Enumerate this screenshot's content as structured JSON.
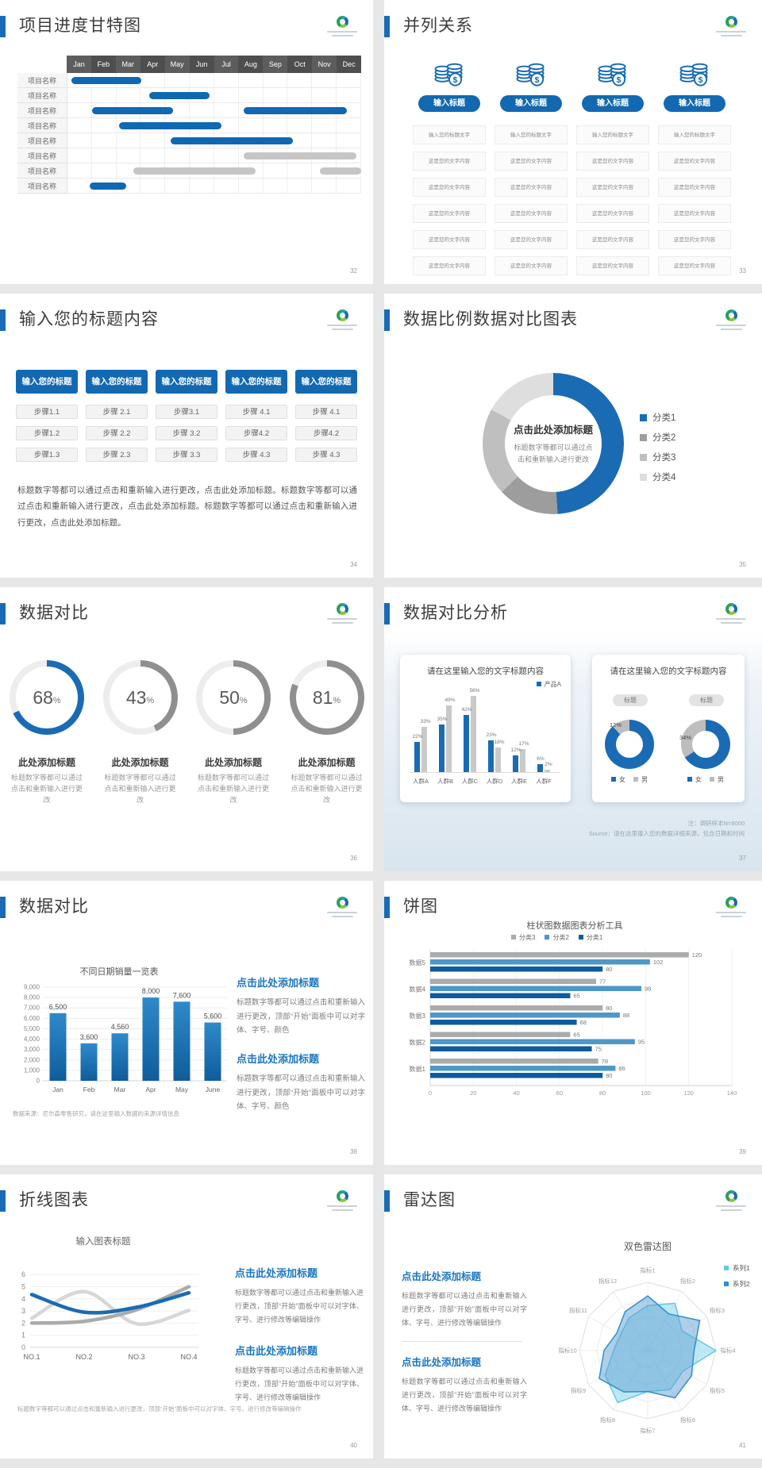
{
  "colors": {
    "accent": "#1a6bb3",
    "blue": "#1269b1",
    "gantt_blue": "#1068b2",
    "gantt_gray": "#c6c6c6"
  },
  "slides": {
    "s32": {
      "page": "32",
      "title": "项目进度甘特图"
    },
    "s33": {
      "page": "33",
      "title": "并列关系",
      "button": "输入标题",
      "row_first": "输入您的标题文字",
      "row_rest": "这是您的文字内容",
      "columns": 4,
      "rows_per_column": 6
    },
    "s34": {
      "page": "34",
      "title": "输入您的标题内容",
      "header": "输入您的标题",
      "steps": [
        [
          "步骤1.1",
          "步骤1.2",
          "步骤1.3"
        ],
        [
          "步骤 2.1",
          "步骤 2.2",
          "步骤 2.3"
        ],
        [
          "步骤3.1",
          "步骤 3.2",
          "步骤 3.3"
        ],
        [
          "步骤 4.1",
          "步骤4.2",
          "步骤 4.3"
        ],
        [
          "步骤 4.1",
          "步骤4.2",
          "步骤 4.3"
        ]
      ],
      "body": "标题数字等都可以通过点击和重新输入进行更改，点击此处添加标题。标题数字等都可以通过点击和重新输入进行更改，点击此处添加标题。标题数字等都可以通过点击和重新输入进行更改，点击此处添加标题。"
    },
    "s35": {
      "page": "35",
      "title": "数据比例数据对比图表"
    },
    "s36": {
      "page": "36",
      "title": "数据对比"
    },
    "s37": {
      "page": "37",
      "title": "数据对比分析",
      "card_title": "请在这里输入您的文字标题内容",
      "pill": "标题",
      "note1": "注：调研样本N=9000",
      "note2": "Source：请在这里输入您的数据详细来源，包含日期和时间"
    },
    "s38": {
      "page": "38",
      "title": "数据对比",
      "block_title": "点击此处添加标题",
      "block_body": "标题数字等都可以通过点击和重新输入进行更改，顶部“开始”面板中可以对字体、字号、颜色",
      "source": "数据来源：尼尔森零售研究，请在这里输入数据的来源详情信息"
    },
    "s39": {
      "page": "39",
      "title": "饼图"
    },
    "s40": {
      "page": "40",
      "title": "折线图表",
      "block_title": "点击此处添加标题",
      "block_body": "标题数字等都可以通过点击和重新输入进行更改，顶部“开始”面板中可以对字体、字号、进行修改等编辑操作",
      "note": "标题数字等都可以通过点击和重新输入进行更改，顶部“开始”面板中可以对字体、字号、进行修改等编辑操作"
    },
    "s41": {
      "page": "41",
      "title": "雷达图",
      "block_title": "点击此处添加标题",
      "block_body": "标题数字等都可以通过点击和重新输入进行更改，顶部“开始”面板中可以对字体、字号、进行修改等编辑操作"
    }
  },
  "chart_data": [
    {
      "id": "gantt32",
      "type": "gantt",
      "title": "项目进度甘特图",
      "months": [
        "Jan",
        "Feb",
        "Mar",
        "Apr",
        "May",
        "Jun",
        "Jul",
        "Aug",
        "Sep",
        "Oct",
        "Nov",
        "Dec"
      ],
      "row_label": "项目名称",
      "rows": 8,
      "bars": [
        {
          "row": 0,
          "start": 0.15,
          "end": 3.0,
          "color": "blue"
        },
        {
          "row": 1,
          "start": 3.35,
          "end": 5.8,
          "color": "blue"
        },
        {
          "row": 2,
          "start": 1.0,
          "end": 4.3,
          "color": "blue"
        },
        {
          "row": 2,
          "start": 7.2,
          "end": 11.4,
          "color": "blue"
        },
        {
          "row": 3,
          "start": 2.1,
          "end": 6.3,
          "color": "blue"
        },
        {
          "row": 4,
          "start": 4.2,
          "end": 9.2,
          "color": "blue"
        },
        {
          "row": 5,
          "start": 7.2,
          "end": 11.8,
          "color": "gray"
        },
        {
          "row": 6,
          "start": 2.7,
          "end": 7.7,
          "color": "gray"
        },
        {
          "row": 6,
          "start": 10.3,
          "end": 12.0,
          "color": "gray"
        },
        {
          "row": 7,
          "start": 0.9,
          "end": 2.4,
          "color": "blue"
        }
      ]
    },
    {
      "id": "donut35",
      "type": "pie",
      "legend": [
        "分类1",
        "分类2",
        "分类3",
        "分类4"
      ],
      "values": [
        49,
        14,
        20,
        17
      ],
      "colors": [
        "#1a6bb3",
        "#9d9d9d",
        "#bfbfbf",
        "#dedede"
      ],
      "center_title": "点击此处添加标题",
      "center_sub": "标题数字等都可以通过点击和重新输入进行更改"
    },
    {
      "id": "gauges36",
      "type": "donut-gauges",
      "track": "#ededed",
      "caption": "此处添加标题",
      "body": "标题数字等都可以通过点击和重新输入进行更改",
      "items": [
        {
          "value": 68,
          "color": "#1a6bb3"
        },
        {
          "value": 43,
          "color": "#8f8f8f"
        },
        {
          "value": 50,
          "color": "#8f8f8f"
        },
        {
          "value": 81,
          "color": "#8f8f8f"
        }
      ]
    },
    {
      "id": "bars37",
      "type": "bar",
      "categories": [
        "人群A",
        "人群B",
        "人群C",
        "人群D",
        "人群E",
        "人群F"
      ],
      "ylim": [
        0,
        60
      ],
      "series": [
        {
          "name": "产品A",
          "color": "#1a6bb3",
          "values": [
            22,
            35,
            42,
            23,
            12,
            6
          ]
        },
        {
          "name": "",
          "color": "#c9c9c9",
          "values": [
            33,
            49,
            56,
            18,
            17,
            2
          ]
        }
      ]
    },
    {
      "id": "donuts37",
      "type": "pie",
      "legend": [
        "女",
        "男"
      ],
      "color_primary": "#1a6bb3",
      "color_secondary": "#bdbdbd",
      "items": [
        {
          "gray_pct": 12,
          "label": "12%"
        },
        {
          "gray_pct": 34,
          "label": "34%"
        }
      ]
    },
    {
      "id": "bars38",
      "type": "bar",
      "title": "不同日期销量一览表",
      "categories": [
        "Jan",
        "Feb",
        "Mar",
        "Apr",
        "May",
        "June"
      ],
      "values": [
        6500,
        3600,
        4560,
        8000,
        7600,
        5600
      ],
      "labels": [
        "6,500",
        "3,600",
        "4,560",
        "8,000",
        "7,600",
        "5,600"
      ],
      "ylim": [
        0,
        9000
      ],
      "yticks": [
        "0",
        "1,000",
        "2,000",
        "3,000",
        "4,000",
        "5,000",
        "6,000",
        "7,000",
        "8,000",
        "9,000"
      ]
    },
    {
      "id": "hbars39",
      "type": "bar-horizontal",
      "title": "柱状图数据图表分析工具",
      "categories": [
        "数据5",
        "数据4",
        "数据3",
        "数据2",
        "数据1"
      ],
      "series": [
        {
          "name": "分类3",
          "color": "#ababab",
          "values": [
            120,
            77,
            80,
            65,
            78
          ]
        },
        {
          "name": "分类2",
          "color": "#4e97c8",
          "values": [
            102,
            98,
            88,
            95,
            86
          ]
        },
        {
          "name": "分类1",
          "color": "#0d5c9b",
          "values": [
            80,
            65,
            68,
            75,
            80
          ]
        }
      ],
      "xlim": [
        0,
        140
      ],
      "xticks": [
        0,
        20,
        40,
        60,
        80,
        100,
        120,
        140
      ]
    },
    {
      "id": "lines40",
      "type": "line",
      "title": "输入图表标题",
      "categories": [
        "NO.1",
        "NO.2",
        "NO.3",
        "NO.4"
      ],
      "ylim": [
        0,
        6
      ],
      "yticks": [
        0,
        1,
        2,
        3,
        4,
        5,
        6
      ],
      "series": [
        {
          "name": "",
          "color": "#d7d7d7",
          "values": [
            2.4,
            4.6,
            1.95,
            3.05
          ]
        },
        {
          "name": "",
          "color": "#ababab",
          "values": [
            2.0,
            2.15,
            3.1,
            5.0
          ]
        },
        {
          "name": "",
          "color": "#1a6bb3",
          "values": [
            4.35,
            2.9,
            3.3,
            4.5
          ]
        }
      ]
    },
    {
      "id": "radar41",
      "type": "radar",
      "title": "双色雷达图",
      "rmax": 100,
      "axes": [
        "指标1",
        "指标2",
        "指标3",
        "指标4",
        "指标5",
        "指标6",
        "指标7",
        "指标8",
        "指标9",
        "指标10",
        "指标11",
        "指标12"
      ],
      "series": [
        {
          "name": "系列1",
          "color": "#62c9e6",
          "fill": "rgba(130,209,235,0.5)",
          "values": [
            66,
            80,
            58,
            100,
            60,
            66,
            60,
            88,
            72,
            50,
            46,
            55
          ]
        },
        {
          "name": "系列2",
          "color": "#2f8fd0",
          "fill": "rgba(95,160,210,0.5)",
          "values": [
            80,
            62,
            88,
            68,
            74,
            80,
            60,
            70,
            82,
            64,
            52,
            66
          ]
        }
      ]
    }
  ]
}
